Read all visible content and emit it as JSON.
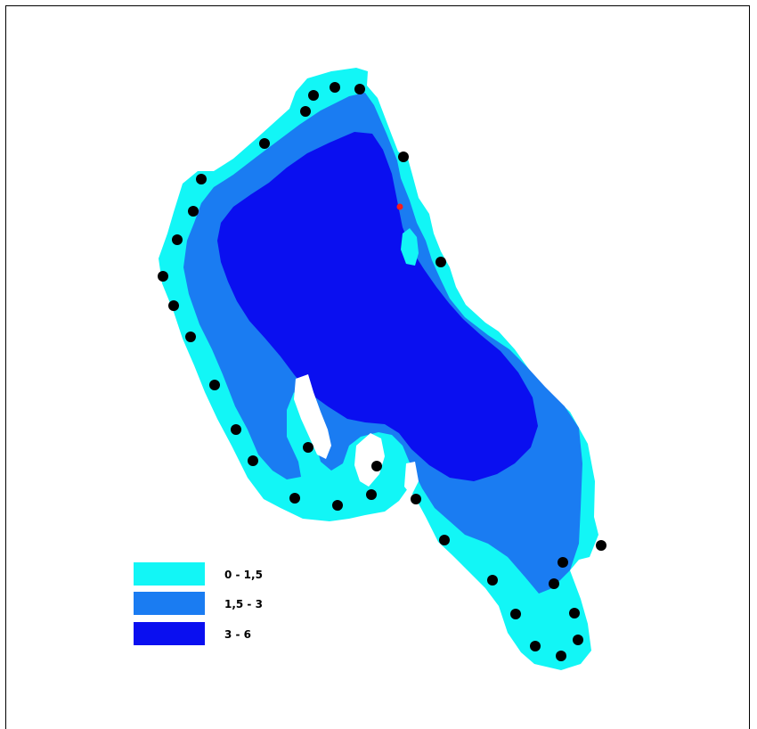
{
  "map": {
    "colors": {
      "zone_shallow": "#12f6f6",
      "zone_mid": "#1a7cf2",
      "zone_deep": "#0a0ff0",
      "sample_point": "#000000",
      "marker": "#ff1a1a"
    },
    "legend": [
      {
        "label": "0 - 1,5",
        "color": "#12f6f6"
      },
      {
        "label": "1,5 - 3",
        "color": "#1a7cf2"
      },
      {
        "label": "3 - 6",
        "color": "#0a0ff0"
      }
    ],
    "sample_point_count": 34
  }
}
